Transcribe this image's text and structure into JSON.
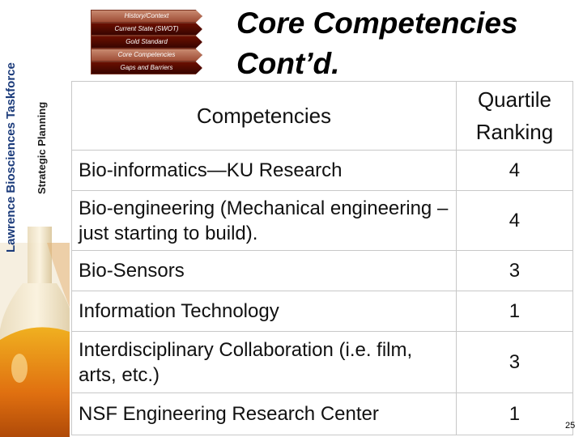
{
  "sidebar": {
    "vertical_title": "Lawrence Biosciences Taskforce",
    "vertical_subtitle": "Strategic Planning"
  },
  "nav": {
    "tabs": [
      {
        "label": "History/Context",
        "active": false
      },
      {
        "label": "Current State (SWOT)",
        "active": true
      },
      {
        "label": "Gold Standard",
        "active": true
      },
      {
        "label": "Core Competencies",
        "active": false
      },
      {
        "label": "Gaps and Barriers",
        "active": true
      }
    ]
  },
  "title": {
    "line1": "Core Competencies",
    "line2": "Cont’d."
  },
  "table": {
    "headers": {
      "competency": "Competencies",
      "rank_line1": "Quartile",
      "rank_line2": "Ranking"
    },
    "rows": [
      {
        "name": "Bio-informatics—KU Research",
        "rank": "4"
      },
      {
        "name": "Bio-engineering (Mechanical engineering – just starting to build).",
        "rank": "4"
      },
      {
        "name": "Bio-Sensors",
        "rank": "3"
      },
      {
        "name": "Information Technology",
        "rank": "1"
      },
      {
        "name": "Interdisciplinary Collaboration (i.e. film, arts, etc.)",
        "rank": "3"
      },
      {
        "name": "NSF Engineering Research Center",
        "rank": "1"
      }
    ]
  },
  "page_number": "25"
}
